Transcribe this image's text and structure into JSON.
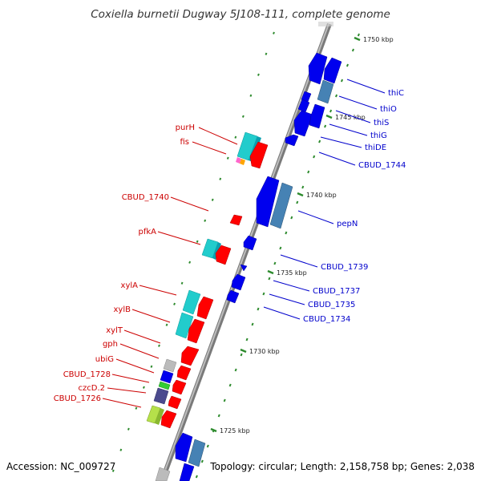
{
  "title": "Coxiella burnetii Dugway 5J108-111, complete genome",
  "accession": "Accession: NC_009727",
  "summary": "Topology: circular; Length: 2,158,758 bp; Genes: 2,038",
  "colors": {
    "backbone": "#8a8a8a",
    "tick": "#2e8b2e",
    "left_label": "#cc0000",
    "right_label": "#0000cc",
    "gene_red": "#ff0000",
    "gene_cyan": "#22cccc",
    "gene_blue": "#0000ee",
    "gene_steel": "#4682b4",
    "gene_gray": "#bbbbbb",
    "gene_green": "#33cc33",
    "gene_slate": "#4b4a8e",
    "gene_lime": "#b5e04a"
  },
  "kbp_ticks": [
    {
      "label": "1750 kbp"
    },
    {
      "label": "1745 kbp"
    },
    {
      "label": "1740 kbp"
    },
    {
      "label": "1735 kbp"
    },
    {
      "label": "1730 kbp"
    },
    {
      "label": "1725 kbp"
    }
  ],
  "left_labels": [
    {
      "text": "purH"
    },
    {
      "text": "fis"
    },
    {
      "text": "CBUD_1740"
    },
    {
      "text": "pfkA"
    },
    {
      "text": "xylA"
    },
    {
      "text": "xylB"
    },
    {
      "text": "xylT"
    },
    {
      "text": "gph"
    },
    {
      "text": "ubiG"
    },
    {
      "text": "CBUD_1728"
    },
    {
      "text": "czcD.2"
    },
    {
      "text": "CBUD_1726"
    }
  ],
  "right_labels": [
    {
      "text": "thiC"
    },
    {
      "text": "thiO"
    },
    {
      "text": "thiS"
    },
    {
      "text": "thiG"
    },
    {
      "text": "thiDE"
    },
    {
      "text": "CBUD_1744"
    },
    {
      "text": "pepN"
    },
    {
      "text": "CBUD_1739"
    },
    {
      "text": "CBUD_1737"
    },
    {
      "text": "CBUD_1735"
    },
    {
      "text": "CBUD_1734"
    }
  ]
}
